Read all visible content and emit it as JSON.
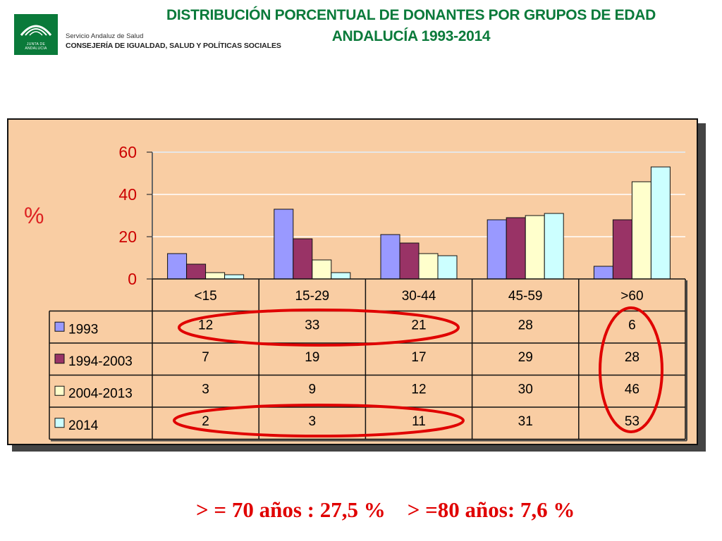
{
  "header": {
    "logo_text": "JUNTA DE ANDALUCIA",
    "org_line1": "Servicio Andaluz de Salud",
    "org_line2": "CONSEJERÍA DE IGUALDAD, SALUD Y POLÍTICAS SOCIALES",
    "title_line1": "DISTRIBUCIÓN PORCENTUAL DE DONANTES POR GRUPOS DE EDAD",
    "title_line2": "ANDALUCÍA 1993-2014"
  },
  "colors": {
    "title": "#0a7a3a",
    "panel_bg": "#f9cda3",
    "highlight": "#e00000"
  },
  "chart_data": {
    "type": "bar",
    "title": "",
    "xlabel": "",
    "ylabel": "%",
    "ylim": [
      0,
      60
    ],
    "yticks": [
      0,
      20,
      40,
      60
    ],
    "grid": true,
    "legend": "data-table-left",
    "categories": [
      "<15",
      "15-29",
      "30-44",
      "45-59",
      ">60"
    ],
    "series": [
      {
        "name": "1993",
        "color": "#9999ff",
        "values": [
          12,
          33,
          21,
          28,
          6
        ]
      },
      {
        "name": "1994-2003",
        "color": "#993366",
        "values": [
          7,
          19,
          17,
          29,
          28
        ]
      },
      {
        "name": "2004-2013",
        "color": "#ffffcc",
        "values": [
          3,
          9,
          12,
          30,
          46
        ]
      },
      {
        "name": "2014",
        "color": "#ccffff",
        "values": [
          2,
          3,
          11,
          31,
          53
        ]
      }
    ]
  },
  "footer": {
    "note": "> = 70 años : 27,5 %    > =80 años: 7,6 %"
  }
}
